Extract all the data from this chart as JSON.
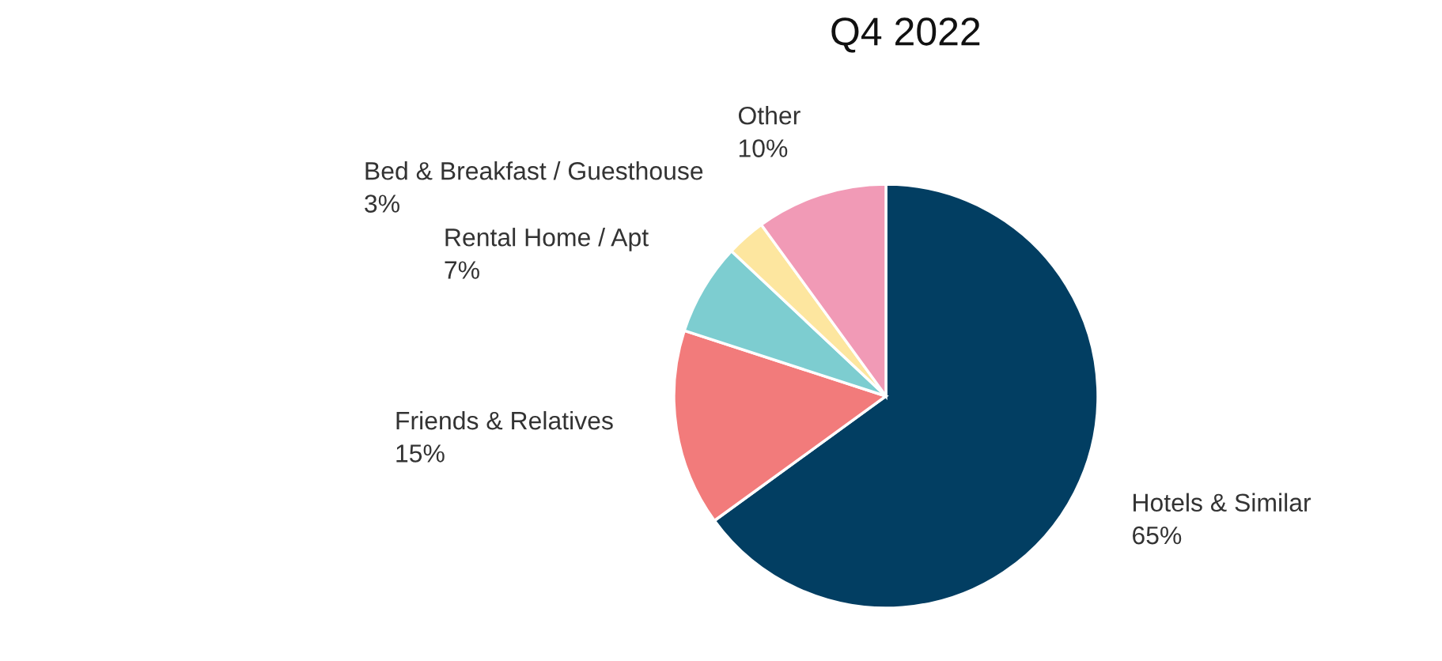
{
  "chart_data": {
    "type": "pie",
    "title": "Q4 2022",
    "categories": [
      "Hotels & Similar",
      "Friends & Relatives",
      "Rental Home / Apt",
      "Bed & Breakfast / Guesthouse",
      "Other"
    ],
    "values": [
      65,
      15,
      7,
      3,
      10
    ],
    "colors": [
      "#023e62",
      "#f27b7b",
      "#7dcdd0",
      "#fde69f",
      "#f19ab6"
    ],
    "value_labels": [
      "65%",
      "15%",
      "7%",
      "3%",
      "10%"
    ]
  }
}
